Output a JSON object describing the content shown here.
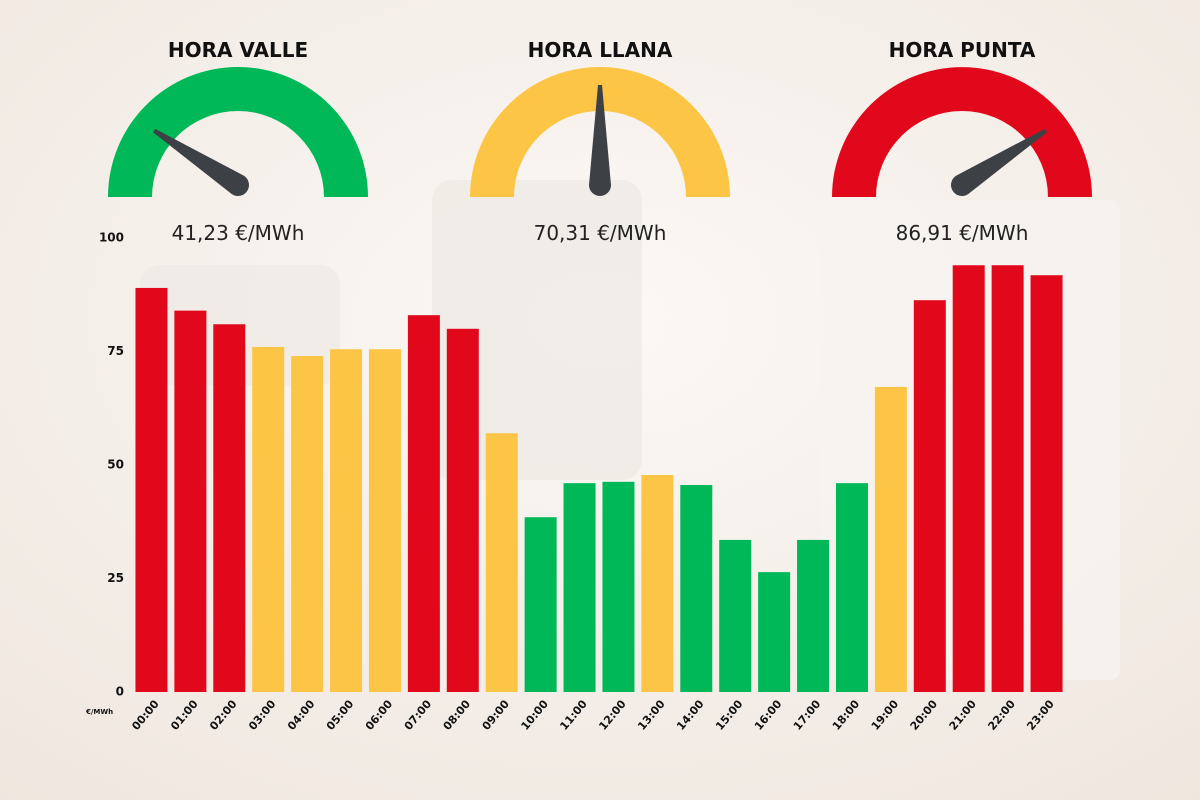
{
  "chart_data": {
    "type": "bar",
    "gauges": [
      {
        "title": "HORA VALLE",
        "label": "41,23 €/MWh",
        "color": "#00b857"
      },
      {
        "title": "HORA LLANA",
        "label": "70,31 €/MWh",
        "color": "#fcc546"
      },
      {
        "title": "HORA PUNTA",
        "label": "86,91 €/MWh",
        "color": "#e1081b"
      }
    ],
    "y_unit_label": "€/MWh",
    "categories": [
      "00:00",
      "01:00",
      "02:00",
      "03:00",
      "04:00",
      "05:00",
      "06:00",
      "07:00",
      "08:00",
      "09:00",
      "10:00",
      "11:00",
      "12:00",
      "13:00",
      "14:00",
      "15:00",
      "16:00",
      "17:00",
      "18:00",
      "19:00",
      "20:00",
      "21:00",
      "22:00",
      "23:00"
    ],
    "values": [
      89,
      84,
      81,
      76,
      74,
      75.5,
      75.5,
      83,
      80,
      57,
      38.5,
      46,
      46.3,
      47.8,
      45.6,
      33.5,
      26.4,
      33.5,
      46,
      67.2,
      86.3,
      94,
      94,
      91.8
    ],
    "colors": [
      "#e1081b",
      "#e1081b",
      "#e1081b",
      "#fcc546",
      "#fcc546",
      "#fcc546",
      "#fcc546",
      "#e1081b",
      "#e1081b",
      "#fcc546",
      "#00b857",
      "#00b857",
      "#00b857",
      "#fcc546",
      "#00b857",
      "#00b857",
      "#00b857",
      "#00b857",
      "#00b857",
      "#fcc546",
      "#e1081b",
      "#e1081b",
      "#e1081b",
      "#e1081b"
    ],
    "ylim": [
      0,
      100
    ],
    "yticks": [
      0,
      25,
      50,
      75,
      100
    ],
    "grid": false
  }
}
